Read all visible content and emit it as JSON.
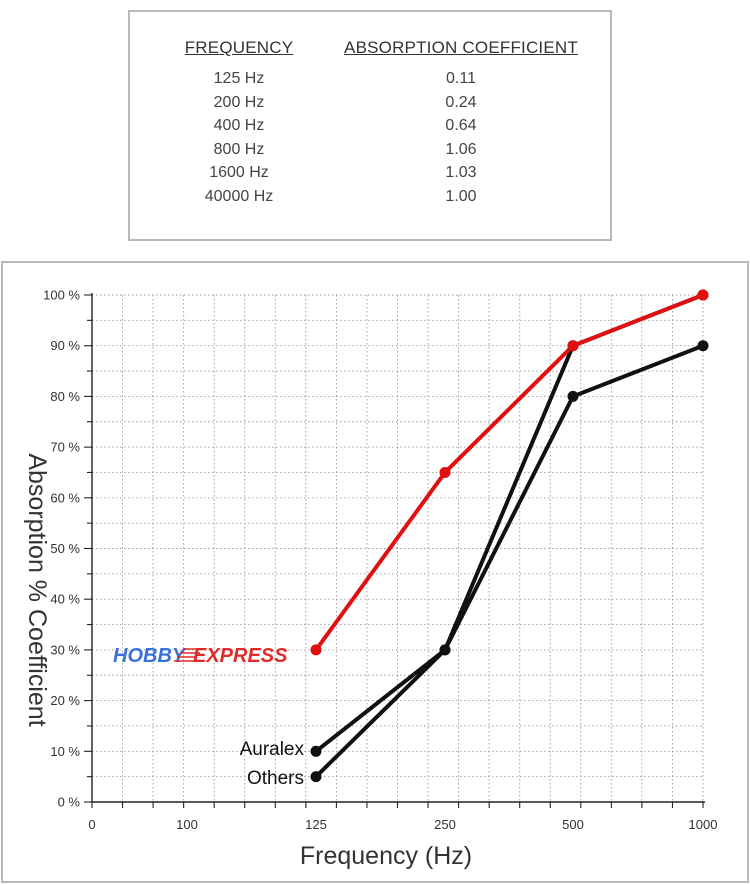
{
  "table": {
    "headers": [
      "FREQUENCY",
      "ABSORPTION COEFFICIENT"
    ],
    "rows": [
      [
        "125 Hz",
        "0.11"
      ],
      [
        "200 Hz",
        "0.24"
      ],
      [
        "400 Hz",
        "0.64"
      ],
      [
        "800 Hz",
        "1.06"
      ],
      [
        "1600 Hz",
        "1.03"
      ],
      [
        "40000 Hz",
        "1.00"
      ]
    ]
  },
  "chart_data": {
    "type": "line",
    "xlabel": "Frequency (Hz)",
    "ylabel": "Absorption % Coefficient",
    "x_tick_labels": [
      "0",
      "100",
      "125",
      "250",
      "500",
      "1000"
    ],
    "y_tick_labels": [
      "0 %",
      "10 %",
      "20 %",
      "30 %",
      "40 %",
      "50 %",
      "60 %",
      "70 %",
      "80 %",
      "90 %",
      "100 %"
    ],
    "ylim": [
      0,
      100
    ],
    "grid": true,
    "categories": [
      "125",
      "250",
      "500",
      "1000"
    ],
    "series": [
      {
        "name": "HOBBY EXPRESS",
        "color": "#e01010",
        "values": [
          30,
          65,
          90,
          100
        ]
      },
      {
        "name": "Auralex",
        "color": "#111111",
        "values": [
          10,
          30,
          90,
          100
        ]
      },
      {
        "name": "Others",
        "color": "#111111",
        "values": [
          5,
          30,
          80,
          90
        ]
      }
    ],
    "annotations": {
      "logo_left": "HOBBY",
      "logo_right": "EXPRESS",
      "auralex": "Auralex",
      "others": "Others"
    }
  }
}
